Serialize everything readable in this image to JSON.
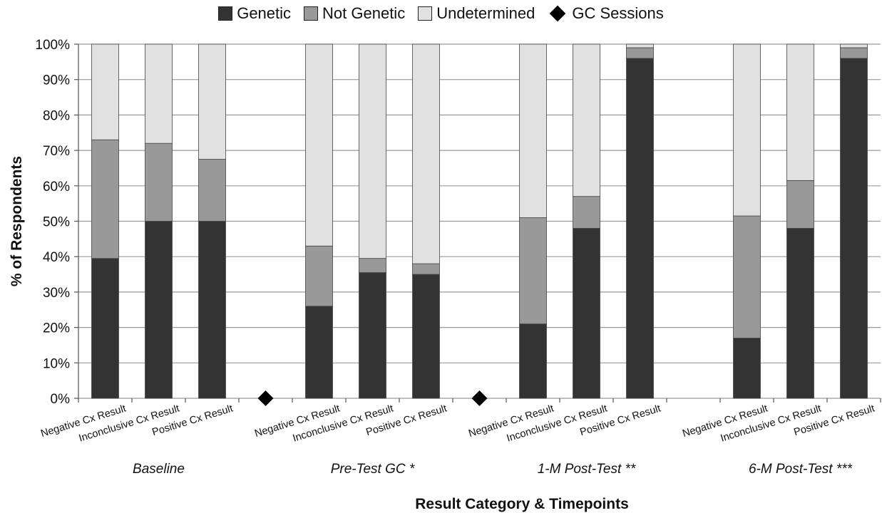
{
  "chart_data": {
    "type": "bar",
    "stacked": true,
    "ylabel": "% of Respondents",
    "xlabel": "Result Category & Timepoints",
    "ylim": [
      0,
      100
    ],
    "yticks": [
      "0%",
      "10%",
      "20%",
      "30%",
      "40%",
      "50%",
      "60%",
      "70%",
      "80%",
      "90%",
      "100%"
    ],
    "legend_position": "top",
    "legend": [
      {
        "name": "Genetic",
        "color": "#333333",
        "shape": "square"
      },
      {
        "name": "Not Genetic",
        "color": "#999999",
        "shape": "square"
      },
      {
        "name": "Undetermined",
        "color": "#e1e1e1",
        "shape": "square"
      },
      {
        "name": "GC Sessions",
        "color": "#000000",
        "shape": "diamond"
      }
    ],
    "groups": [
      {
        "label": "Baseline",
        "categories": [
          "Negative Cx Result",
          "Inconclusive Cx Result",
          "Positive Cx Result"
        ],
        "genetic": [
          39.5,
          50,
          50
        ],
        "not_genetic": [
          33.5,
          22,
          17.5
        ],
        "undetermined": [
          27,
          28,
          32.5
        ]
      },
      {
        "label": "Pre-Test GC *",
        "categories": [
          "Negative Cx Result",
          "Inconclusive Cx Result",
          "Positive Cx Result"
        ],
        "genetic": [
          26,
          35.5,
          35
        ],
        "not_genetic": [
          17,
          4,
          3
        ],
        "undetermined": [
          57,
          60.5,
          62
        ]
      },
      {
        "label": "1-M Post-Test **",
        "categories": [
          "Negative Cx Result",
          "Inconclusive Cx Result",
          "Positive Cx Result"
        ],
        "genetic": [
          21,
          48,
          96
        ],
        "not_genetic": [
          30,
          9,
          3
        ],
        "undetermined": [
          49,
          43,
          1
        ]
      },
      {
        "label": "6-M Post-Test ***",
        "categories": [
          "Negative Cx Result",
          "Inconclusive Cx Result",
          "Positive Cx Result"
        ],
        "genetic": [
          17,
          48,
          96
        ],
        "not_genetic": [
          34.5,
          13.5,
          3
        ],
        "undetermined": [
          48.5,
          38.5,
          1
        ]
      }
    ],
    "gc_sessions": [
      {
        "after_group": 0,
        "value": 0
      },
      {
        "after_group": 1,
        "value": 0
      }
    ],
    "grid": true
  }
}
